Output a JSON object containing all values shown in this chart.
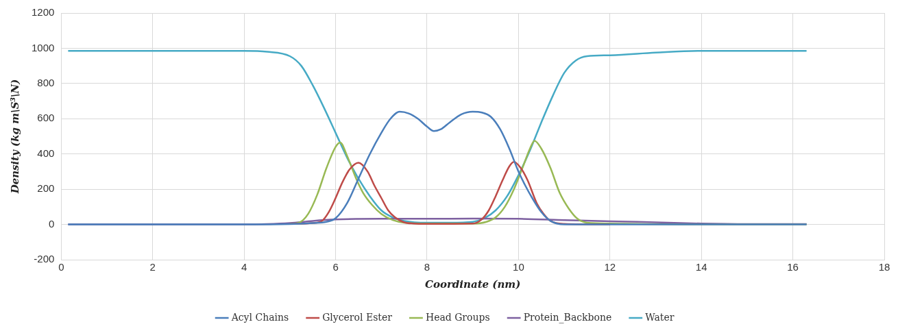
{
  "chart_data": {
    "type": "line",
    "xlabel": "Coordinate (nm)",
    "ylabel": "Density (kg m\\S³\\N)",
    "xlim": [
      0,
      18
    ],
    "xticks": [
      0,
      2,
      4,
      6,
      8,
      10,
      12,
      14,
      16,
      18
    ],
    "ylim": [
      -200,
      1200
    ],
    "yticks": [
      -200,
      0,
      200,
      400,
      600,
      800,
      1000,
      1200
    ],
    "grid": true,
    "legend": "bottom",
    "marker": "none",
    "line_style": "solid",
    "series": [
      {
        "name": "Acyl Chains",
        "color": "#4a7ebb",
        "x": [
          0.15,
          2,
          4,
          5,
          5.5,
          5.8,
          6,
          6.25,
          6.5,
          6.75,
          7,
          7.2,
          7.4,
          7.6,
          7.8,
          8,
          8.15,
          8.3,
          8.5,
          8.75,
          9,
          9.2,
          9.4,
          9.6,
          9.8,
          10,
          10.15,
          10.3,
          10.5,
          10.7,
          11,
          12,
          14,
          16.3
        ],
        "values": [
          0,
          0,
          0,
          2,
          8,
          15,
          35,
          120,
          260,
          400,
          520,
          600,
          640,
          630,
          600,
          555,
          530,
          540,
          580,
          625,
          640,
          635,
          610,
          540,
          430,
          300,
          220,
          150,
          70,
          20,
          0,
          0,
          0,
          0
        ]
      },
      {
        "name": "Glycerol Ester",
        "color": "#be4b48",
        "x": [
          5,
          5.5,
          5.7,
          5.85,
          6,
          6.15,
          6.3,
          6.5,
          6.7,
          6.85,
          7,
          7.15,
          7.3,
          7.5,
          7.7,
          8,
          9,
          9.2,
          9.35,
          9.5,
          9.65,
          9.8,
          9.9,
          10.05,
          10.2,
          10.4,
          10.55,
          10.7,
          11,
          12
        ],
        "values": [
          3,
          8,
          20,
          70,
          150,
          240,
          310,
          350,
          300,
          220,
          150,
          80,
          40,
          12,
          5,
          3,
          5,
          30,
          80,
          160,
          250,
          330,
          355,
          320,
          250,
          120,
          60,
          20,
          3,
          0
        ]
      },
      {
        "name": "Head Groups",
        "color": "#98b954",
        "x": [
          5,
          5.2,
          5.4,
          5.6,
          5.8,
          6,
          6.1,
          6.25,
          6.45,
          6.6,
          6.8,
          7,
          7.25,
          7.5,
          8,
          9,
          9.3,
          9.5,
          9.7,
          9.9,
          10.1,
          10.25,
          10.35,
          10.5,
          10.7,
          10.9,
          11.1,
          11.3,
          11.5,
          12,
          14,
          16.3
        ],
        "values": [
          3,
          10,
          60,
          170,
          320,
          440,
          465,
          390,
          260,
          180,
          110,
          60,
          25,
          10,
          5,
          5,
          15,
          40,
          100,
          200,
          330,
          430,
          475,
          430,
          320,
          180,
          90,
          30,
          10,
          5,
          0,
          0
        ]
      },
      {
        "name": "Protein_Backbone",
        "color": "#7d60a0",
        "x": [
          0.15,
          2,
          4,
          4.5,
          5,
          5.5,
          6,
          7,
          8,
          9,
          10,
          11,
          12,
          13,
          14,
          15,
          16.3
        ],
        "values": [
          0,
          0,
          0,
          2,
          8,
          20,
          28,
          32,
          32,
          33,
          32,
          25,
          18,
          12,
          5,
          2,
          2
        ]
      },
      {
        "name": "Water",
        "color": "#46aac5",
        "x": [
          0.15,
          2,
          4,
          4.5,
          5,
          5.25,
          5.5,
          5.75,
          6,
          6.25,
          6.5,
          6.75,
          7,
          7.25,
          7.5,
          8,
          8.5,
          9,
          9.25,
          9.5,
          9.75,
          10,
          10.25,
          10.5,
          10.75,
          11,
          11.25,
          11.5,
          12,
          13,
          14,
          16.3
        ],
        "values": [
          985,
          985,
          985,
          980,
          955,
          900,
          790,
          660,
          520,
          380,
          260,
          160,
          80,
          40,
          20,
          10,
          10,
          15,
          35,
          80,
          160,
          280,
          420,
          580,
          730,
          860,
          930,
          955,
          960,
          975,
          985,
          985
        ]
      }
    ]
  }
}
